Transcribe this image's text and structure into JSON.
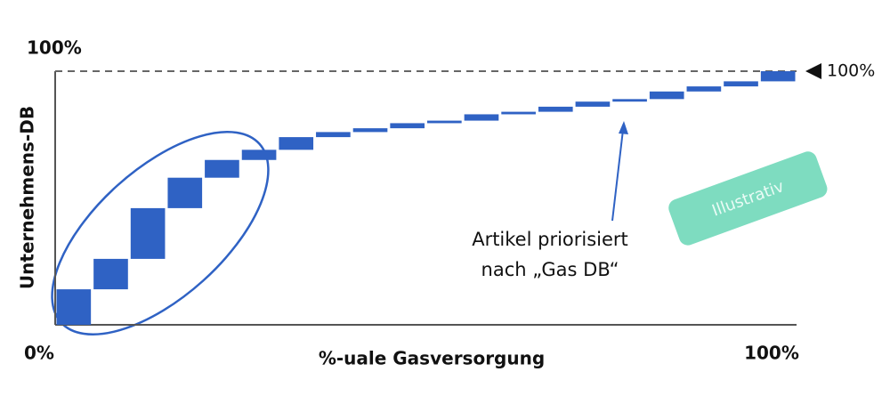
{
  "chart_data": {
    "type": "waterfall",
    "x_label": "%-uale Gasversorgung",
    "y_label": "Unternehmens-DB",
    "values": [
      14,
      12,
      20,
      12,
      7,
      4,
      5,
      2,
      1.5,
      2,
      1,
      2.5,
      1,
      2,
      2,
      1,
      3,
      2,
      2,
      4
    ],
    "color": "#2f62c4",
    "xlim": [
      0,
      100
    ],
    "xticks": [
      {
        "value": 0,
        "label": "0%"
      },
      {
        "value": 100,
        "label": "100%"
      }
    ],
    "ylim": [
      0,
      100
    ],
    "yticks": [
      {
        "value": 100,
        "label": "100%"
      }
    ],
    "reference_line": {
      "value": 100,
      "label": "100%"
    },
    "annotation": [
      "Artikel priorisiert",
      "nach „Gas DB“"
    ],
    "stamp": "Illustrativ"
  }
}
